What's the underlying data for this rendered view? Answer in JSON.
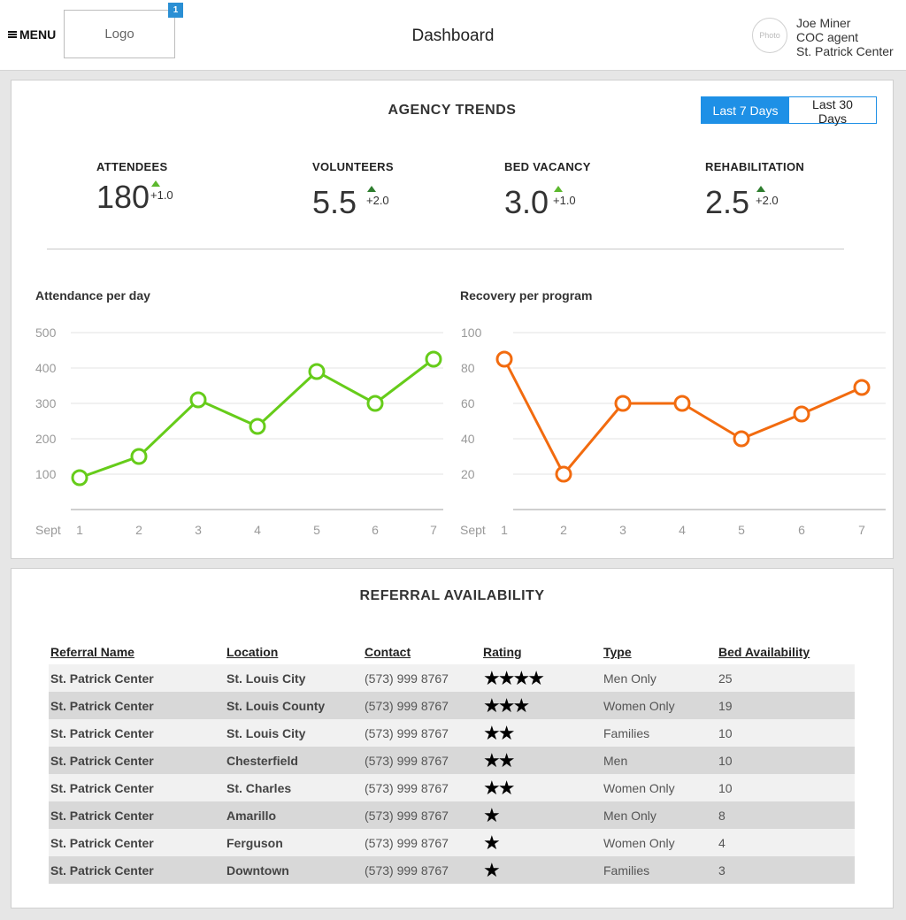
{
  "header": {
    "menu_label": "MENU",
    "logo_label": "Logo",
    "badge_count": "1",
    "title": "Dashboard",
    "photo_label": "Photo",
    "user": {
      "name": "Joe Miner",
      "role": "COC agent",
      "org": "St. Patrick Center"
    }
  },
  "trends": {
    "title": "AGENCY TRENDS",
    "range_options": [
      "Last 7 Days",
      "Last 30 Days"
    ],
    "selected_range": "Last 7 Days",
    "accent_color": "#1e90e6",
    "kpis": [
      {
        "label": "ATTENDEES",
        "value": "180",
        "delta": "+1.0",
        "trend_color": "#5cb82e"
      },
      {
        "label": "VOLUNTEERS",
        "value": "5.5",
        "delta": "+2.0",
        "trend_color": "#2e7d2e"
      },
      {
        "label": "BED VACANCY",
        "value": "3.0",
        "delta": "+1.0",
        "trend_color": "#5cb82e"
      },
      {
        "label": "REHABILITATION",
        "value": "2.5",
        "delta": "+2.0",
        "trend_color": "#2e7d2e"
      }
    ]
  },
  "chart_data": [
    {
      "type": "line",
      "title": "Attendance per day",
      "xlabel": "Sept",
      "categories": [
        "1",
        "2",
        "3",
        "4",
        "5",
        "6",
        "7"
      ],
      "values": [
        90,
        150,
        310,
        235,
        390,
        300,
        425
      ],
      "ylim": [
        0,
        500
      ],
      "yticks": [
        "100",
        "200",
        "300",
        "400",
        "500"
      ],
      "color": "#66cc1a",
      "grid": true
    },
    {
      "type": "line",
      "title": "Recovery per program",
      "xlabel": "Sept",
      "categories": [
        "1",
        "2",
        "3",
        "4",
        "5",
        "6",
        "7"
      ],
      "values": [
        85,
        20,
        60,
        60,
        40,
        54,
        69
      ],
      "ylim": [
        0,
        100
      ],
      "yticks": [
        "20",
        "40",
        "60",
        "80",
        "100"
      ],
      "color": "#f26b0f",
      "grid": true
    }
  ],
  "referral": {
    "title": "REFERRAL AVAILABILITY",
    "columns": [
      "Referral Name",
      "Location",
      "Contact",
      "Rating",
      "Type",
      "Bed Availability"
    ],
    "rows": [
      {
        "name": "St. Patrick Center",
        "location": "St. Louis City",
        "contact": "(573) 999 8767",
        "rating": 4,
        "type": "Men Only",
        "beds": "25"
      },
      {
        "name": "St. Patrick Center",
        "location": "St. Louis County",
        "contact": "(573) 999 8767",
        "rating": 3,
        "type": "Women Only",
        "beds": "19"
      },
      {
        "name": "St. Patrick Center",
        "location": "St. Louis City",
        "contact": "(573) 999 8767",
        "rating": 2,
        "type": "Families",
        "beds": "10"
      },
      {
        "name": "St. Patrick Center",
        "location": "Chesterfield",
        "contact": "(573) 999 8767",
        "rating": 2,
        "type": "Men",
        "beds": "10"
      },
      {
        "name": "St. Patrick Center",
        "location": "St. Charles",
        "contact": "(573) 999 8767",
        "rating": 2,
        "type": "Women Only",
        "beds": "10"
      },
      {
        "name": "St. Patrick Center",
        "location": "Amarillo",
        "contact": "(573) 999 8767",
        "rating": 1,
        "type": "Men Only",
        "beds": "8"
      },
      {
        "name": "St. Patrick Center",
        "location": "Ferguson",
        "contact": "(573) 999 8767",
        "rating": 1,
        "type": "Women Only",
        "beds": "4"
      },
      {
        "name": "St. Patrick Center",
        "location": "Downtown",
        "contact": "(573) 999 8767",
        "rating": 1,
        "type": "Families",
        "beds": "3"
      }
    ]
  }
}
